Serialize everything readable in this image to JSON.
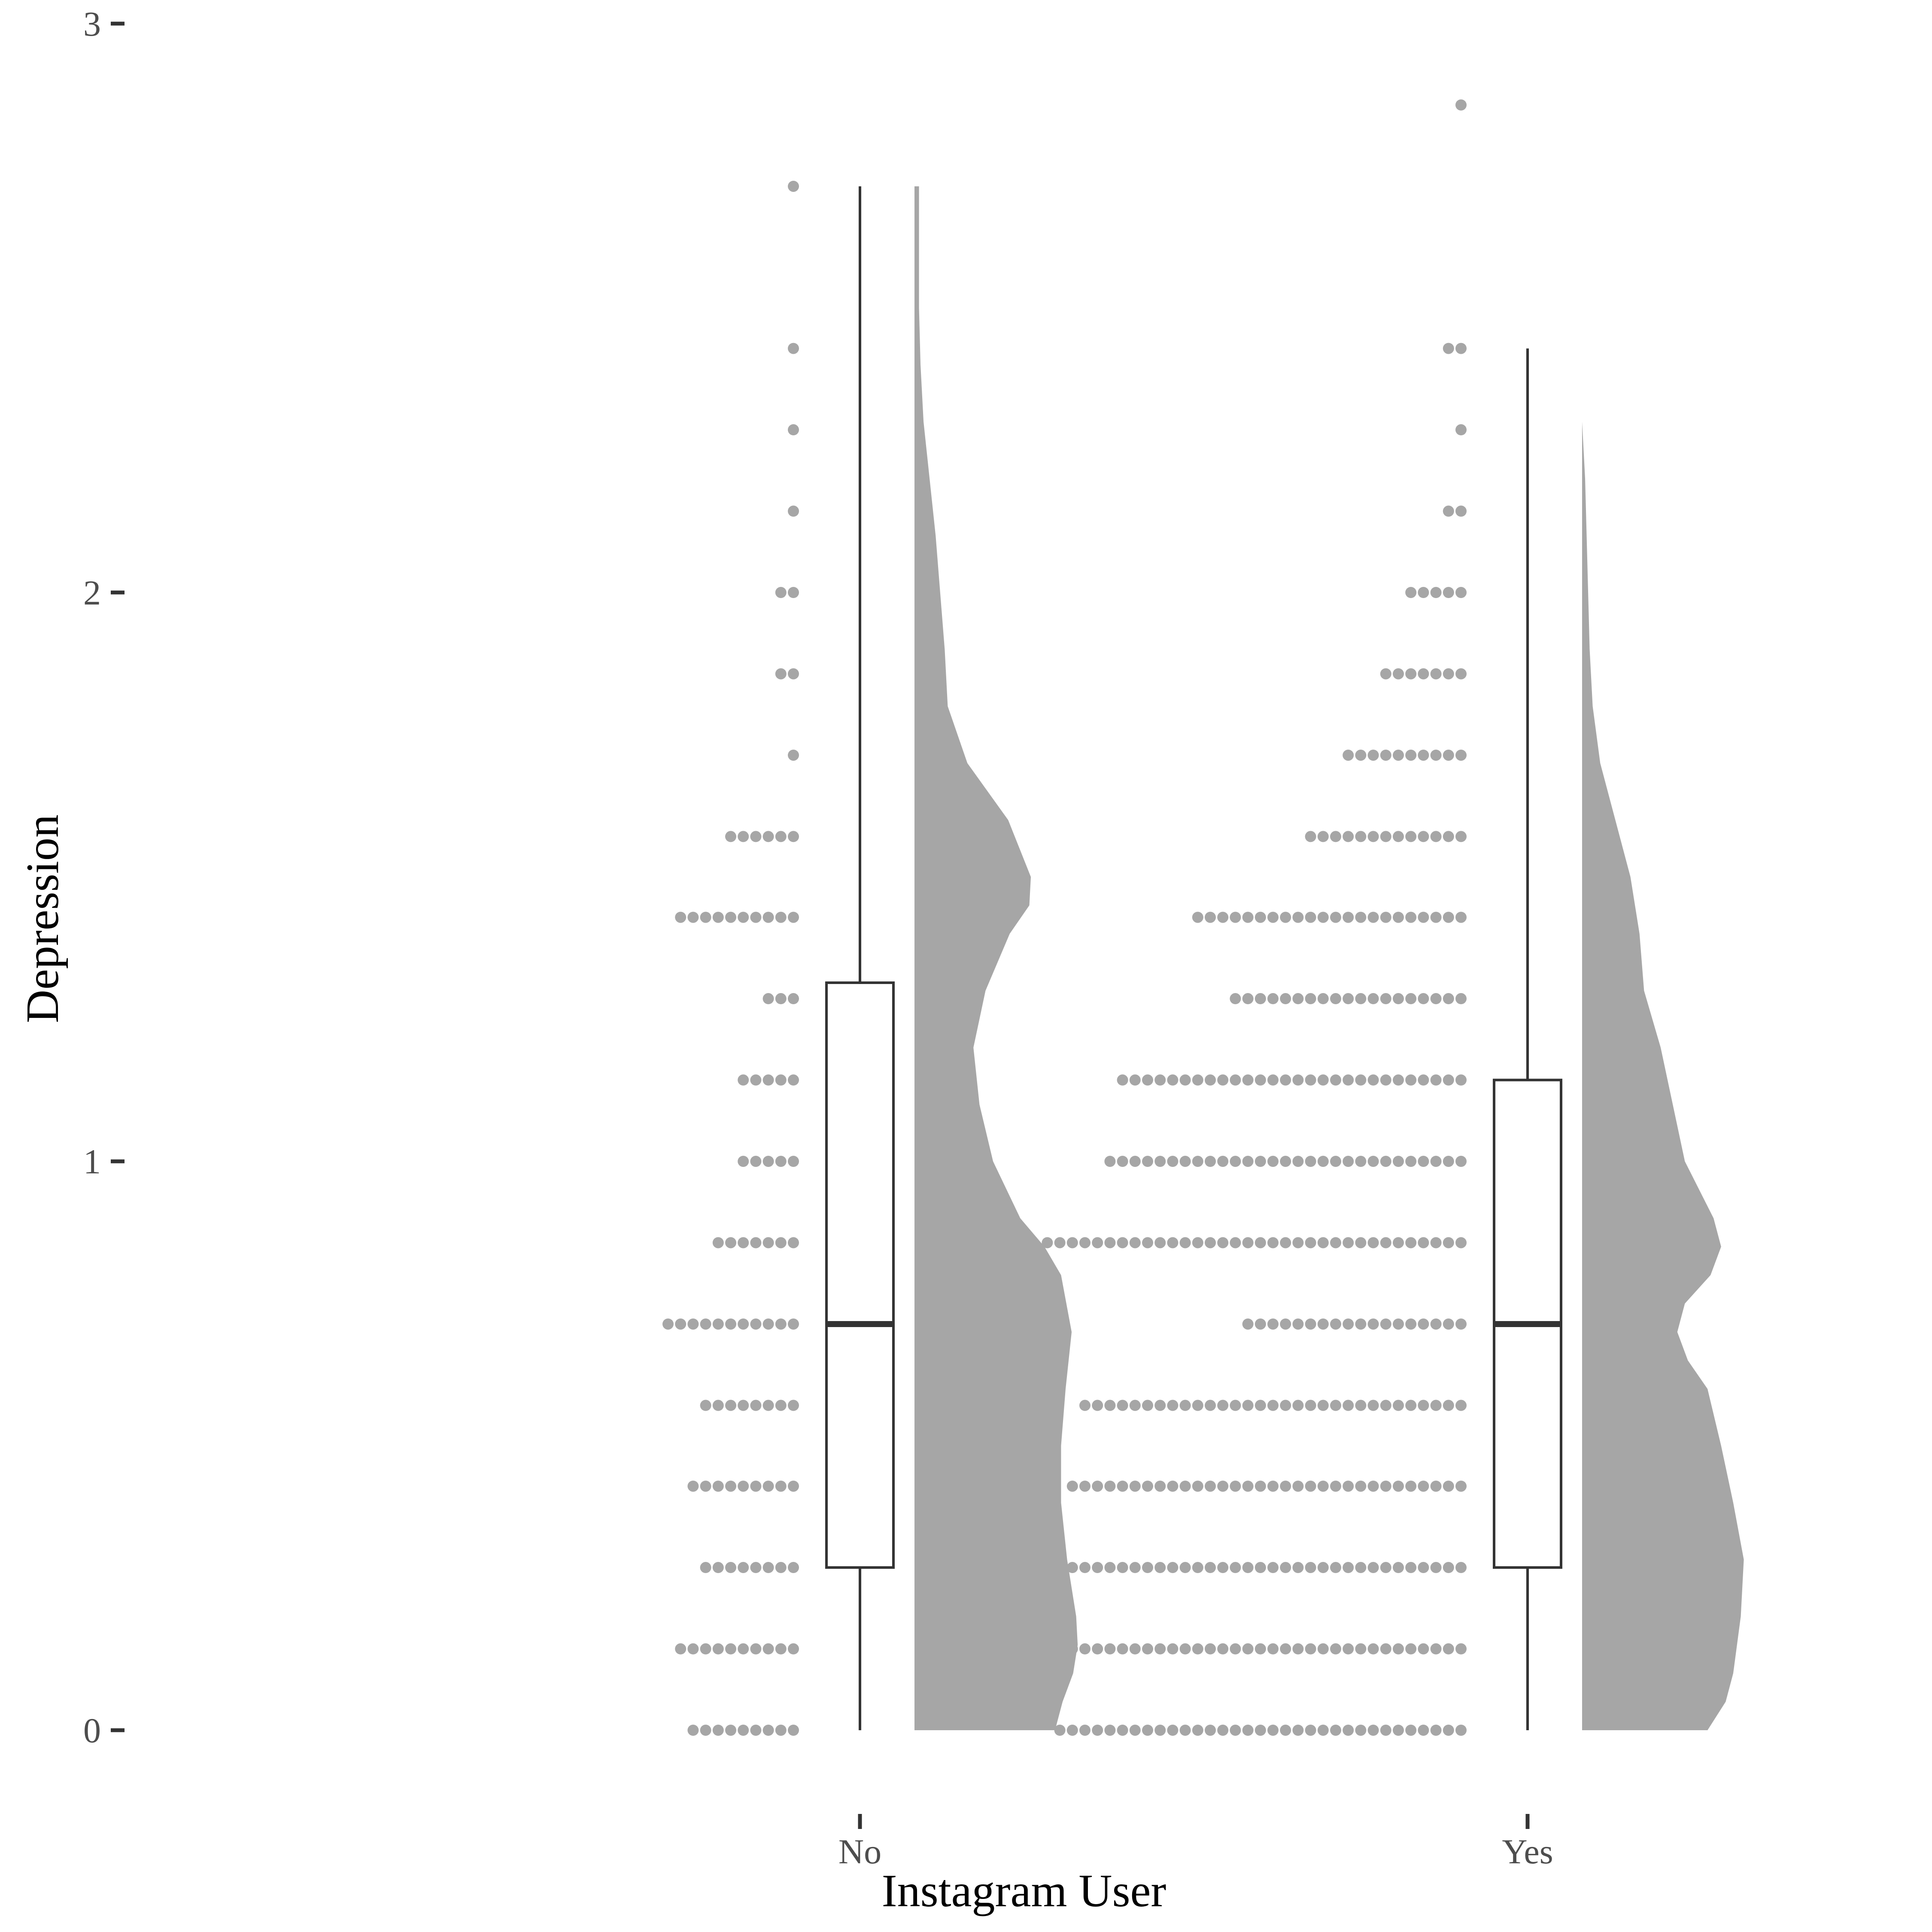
{
  "chart_data": {
    "type": "raincloud",
    "xlabel": "Instagram User",
    "ylabel": "Depression",
    "ylim": [
      0,
      3
    ],
    "yticks": [
      "0",
      "1",
      "2",
      "3"
    ],
    "categories": [
      "No",
      "Yes"
    ],
    "grid": false,
    "legend": "none",
    "colors": {
      "dots": "#a6a6a6",
      "density": "#a6a6a6",
      "box_stroke": "#333333",
      "box_fill": "#ffffff",
      "tick_label": "#4d4d4d"
    },
    "dotplot_levels": [
      0,
      0.143,
      0.286,
      0.429,
      0.571,
      0.714,
      0.857,
      1.0,
      1.143,
      1.286,
      1.429,
      1.571,
      1.714,
      1.857,
      2.0,
      2.143,
      2.286,
      2.429,
      2.571,
      2.714,
      2.857
    ],
    "groups": [
      {
        "name": "No",
        "dot_counts": [
          9,
          10,
          8,
          9,
          8,
          11,
          7,
          5,
          5,
          3,
          10,
          6,
          1,
          2,
          2,
          1,
          1,
          1,
          0,
          1,
          0
        ],
        "box": {
          "min": 0.0,
          "q1": 0.286,
          "median": 0.714,
          "q3": 1.314,
          "max": 2.714
        },
        "density": [
          [
            0.0,
            0.93
          ],
          [
            0.05,
            0.98
          ],
          [
            0.1,
            1.05
          ],
          [
            0.15,
            1.08
          ],
          [
            0.2,
            1.07
          ],
          [
            0.3,
            1.01
          ],
          [
            0.4,
            0.97
          ],
          [
            0.5,
            0.97
          ],
          [
            0.6,
            1.0
          ],
          [
            0.7,
            1.04
          ],
          [
            0.8,
            0.97
          ],
          [
            0.85,
            0.86
          ],
          [
            0.9,
            0.7
          ],
          [
            1.0,
            0.52
          ],
          [
            1.1,
            0.43
          ],
          [
            1.2,
            0.39
          ],
          [
            1.3,
            0.47
          ],
          [
            1.4,
            0.63
          ],
          [
            1.45,
            0.76
          ],
          [
            1.5,
            0.77
          ],
          [
            1.6,
            0.62
          ],
          [
            1.7,
            0.35
          ],
          [
            1.8,
            0.22
          ],
          [
            1.9,
            0.2
          ],
          [
            2.0,
            0.17
          ],
          [
            2.1,
            0.14
          ],
          [
            2.2,
            0.1
          ],
          [
            2.3,
            0.06
          ],
          [
            2.4,
            0.04
          ],
          [
            2.5,
            0.03
          ],
          [
            2.6,
            0.03
          ],
          [
            2.714,
            0.03
          ]
        ]
      },
      {
        "name": "Yes",
        "dot_counts": [
          33,
          32,
          32,
          32,
          31,
          18,
          34,
          29,
          28,
          19,
          22,
          13,
          10,
          7,
          5,
          2,
          1,
          2,
          0,
          0,
          1
        ],
        "box": {
          "min": 0.0,
          "q1": 0.286,
          "median": 0.714,
          "q3": 1.143,
          "max": 2.429
        },
        "density": [
          [
            0.0,
            0.83
          ],
          [
            0.05,
            0.95
          ],
          [
            0.1,
            1.0
          ],
          [
            0.2,
            1.05
          ],
          [
            0.3,
            1.07
          ],
          [
            0.4,
            1.0
          ],
          [
            0.5,
            0.92
          ],
          [
            0.6,
            0.83
          ],
          [
            0.65,
            0.7
          ],
          [
            0.7,
            0.63
          ],
          [
            0.75,
            0.68
          ],
          [
            0.8,
            0.85
          ],
          [
            0.85,
            0.92
          ],
          [
            0.9,
            0.87
          ],
          [
            1.0,
            0.68
          ],
          [
            1.1,
            0.6
          ],
          [
            1.2,
            0.52
          ],
          [
            1.3,
            0.41
          ],
          [
            1.4,
            0.38
          ],
          [
            1.5,
            0.32
          ],
          [
            1.6,
            0.22
          ],
          [
            1.7,
            0.12
          ],
          [
            1.8,
            0.07
          ],
          [
            1.9,
            0.05
          ],
          [
            2.0,
            0.04
          ],
          [
            2.1,
            0.03
          ],
          [
            2.2,
            0.02
          ],
          [
            2.3,
            0.0
          ],
          [
            2.4,
            0.0
          ],
          [
            2.5,
            0.0
          ],
          [
            2.6,
            0.0
          ],
          [
            2.7,
            0.0
          ],
          [
            2.857,
            0.0
          ]
        ]
      }
    ]
  }
}
